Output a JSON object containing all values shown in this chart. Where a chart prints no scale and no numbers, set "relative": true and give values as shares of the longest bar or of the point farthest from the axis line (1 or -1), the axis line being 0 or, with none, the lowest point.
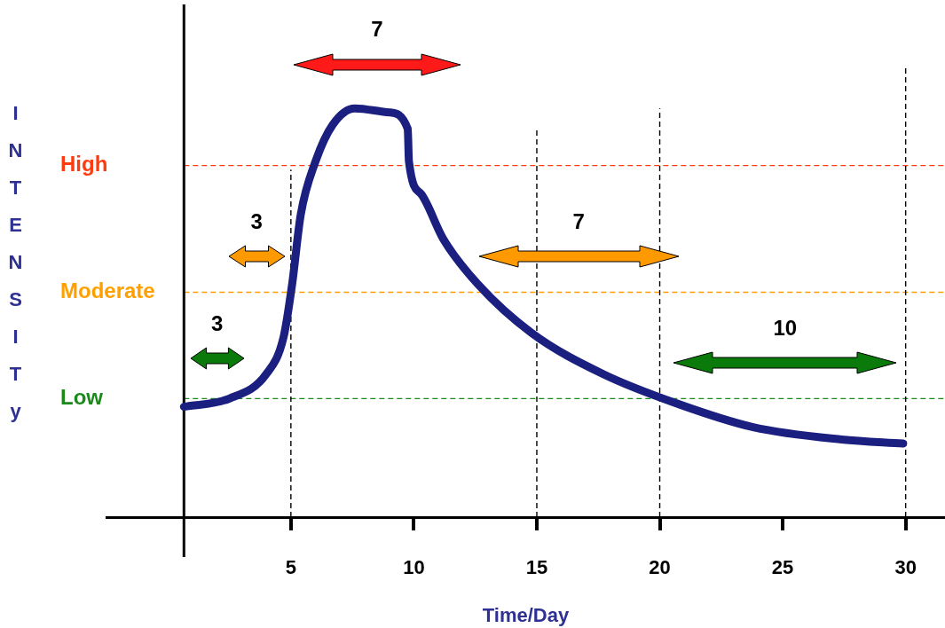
{
  "chart_data": {
    "type": "line",
    "xlabel": "Time/Day",
    "relative": true,
    "color": "#1a1f80",
    "x": [
      0.65,
      2.5,
      4,
      4.7,
      5.05,
      5.4,
      6,
      6.7,
      7.6,
      9,
      9.75,
      9.8,
      10.3,
      11.2,
      12.6,
      14.8,
      17.7,
      20.6,
      23.8,
      27.4,
      29.9
    ],
    "values": [
      0.27,
      0.29,
      0.35,
      0.44,
      0.57,
      0.74,
      0.87,
      0.96,
      1,
      0.99,
      0.95,
      0.87,
      0.79,
      0.68,
      0.57,
      0.45,
      0.35,
      0.28,
      0.22,
      0.19,
      0.18
    ],
    "xlim": [
      -2.5,
      31.6
    ],
    "xticks": [
      5,
      10,
      15,
      20,
      25,
      30
    ],
    "ref_lines": [
      {
        "axis": "y",
        "value": 0.29,
        "label": "Low",
        "color": "#1a8a1a",
        "line_style": "dashed"
      },
      {
        "axis": "y",
        "value": 0.55,
        "label": "Moderate",
        "color": "#ffa000",
        "line_style": "dashed"
      },
      {
        "axis": "y",
        "value": 0.86,
        "label": "High",
        "color": "#ff3b10",
        "line_style": "dashed"
      },
      {
        "axis": "x",
        "value": 0.65,
        "line_style": "solid",
        "color": "#000000"
      },
      {
        "axis": "x",
        "value": 5,
        "line_style": "dashed"
      },
      {
        "axis": "x",
        "value": 15,
        "line_style": "dashed"
      },
      {
        "axis": "x",
        "value": 20,
        "line_style": "dashed"
      },
      {
        "axis": "x",
        "value": 30,
        "line_style": "dashed"
      }
    ],
    "annotations": [
      "INTENSITy",
      "3",
      "3",
      "7",
      "7",
      "10"
    ],
    "grid": false,
    "legend": false,
    "marker": "none",
    "line_style": "solid"
  }
}
